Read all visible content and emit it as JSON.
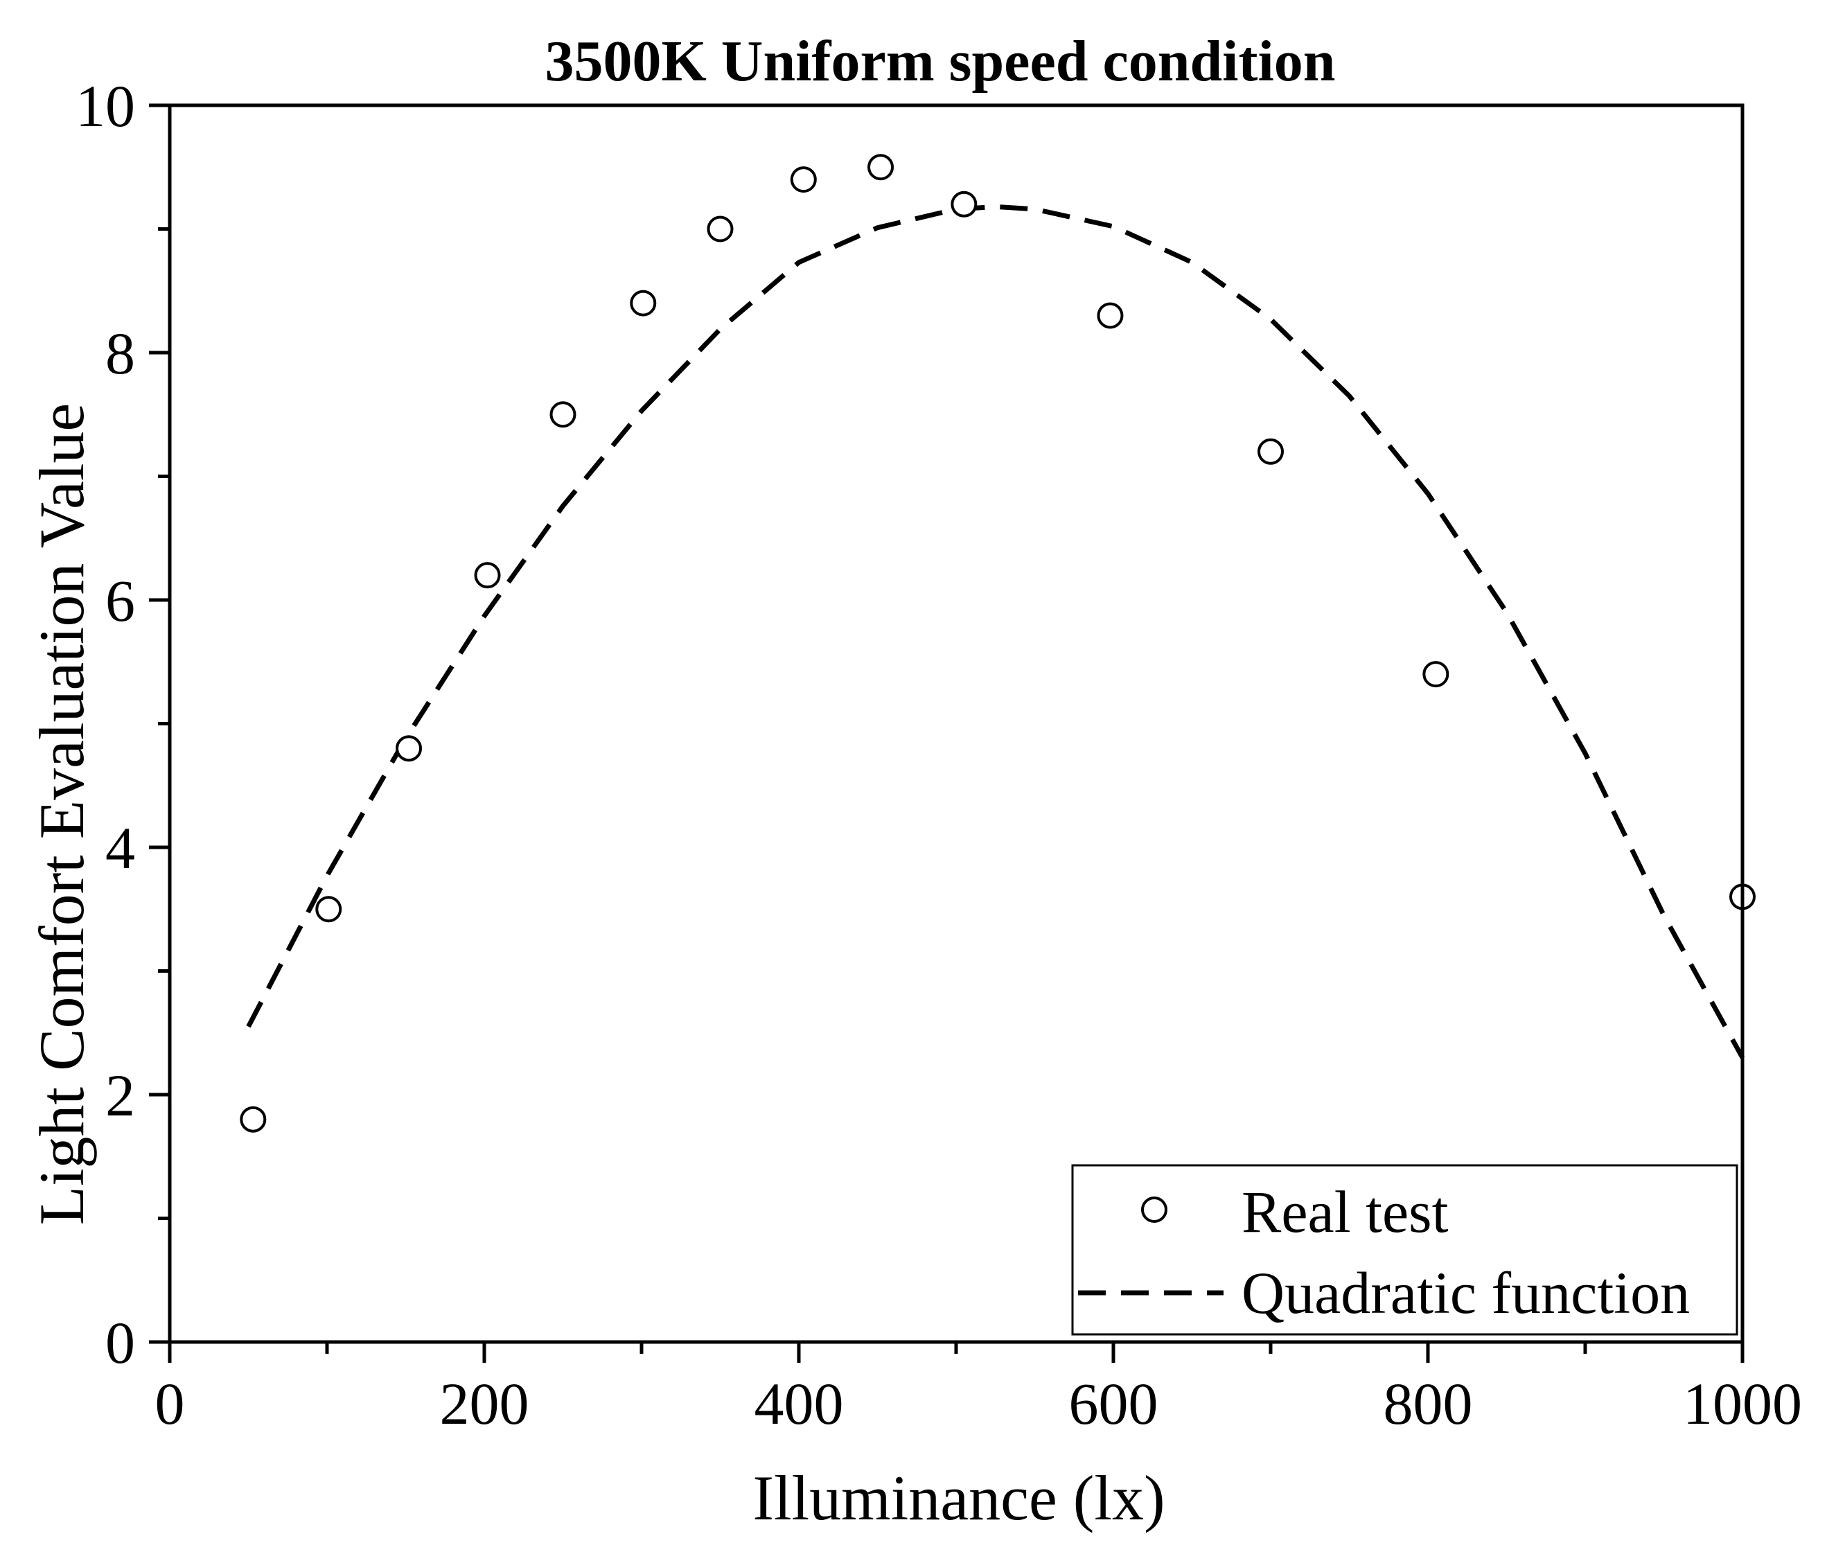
{
  "chart_data": {
    "type": "scatter",
    "title": "3500K Uniform speed condition",
    "xlabel": "Illuminance (lx)",
    "ylabel": "Light Comfort Evaluation Value",
    "xlim": [
      0,
      1000
    ],
    "ylim": [
      0,
      10
    ],
    "x_ticks": [
      0,
      200,
      400,
      600,
      800,
      1000
    ],
    "y_ticks": [
      0,
      2,
      4,
      6,
      8,
      10
    ],
    "x_minor_ticks": [
      100,
      300,
      500,
      700,
      900
    ],
    "y_minor_ticks": [
      1,
      3,
      5,
      7,
      9
    ],
    "grid": false,
    "legend_position": "bottom-right",
    "series": [
      {
        "name": "Real test",
        "kind": "scatter",
        "marker": "open-circle",
        "x": [
          53,
          101,
          152,
          202,
          250,
          301,
          350,
          403,
          452,
          505,
          598,
          700,
          805,
          1000
        ],
        "y": [
          1.8,
          3.5,
          4.8,
          6.2,
          7.5,
          8.4,
          9.0,
          9.4,
          9.5,
          9.2,
          8.3,
          7.2,
          5.4,
          3.6
        ]
      },
      {
        "name": "Quadratic function",
        "kind": "line",
        "style": "dashed",
        "x": [
          50,
          100,
          150,
          200,
          250,
          300,
          350,
          400,
          450,
          500,
          525,
          550,
          600,
          650,
          700,
          750,
          800,
          850,
          900,
          950,
          1000
        ],
        "y": [
          2.55,
          3.77,
          4.88,
          5.87,
          6.76,
          7.53,
          8.19,
          8.73,
          9.01,
          9.16,
          9.18,
          9.16,
          9.02,
          8.73,
          8.27,
          7.65,
          6.86,
          5.9,
          4.76,
          3.45,
          2.3
        ]
      }
    ]
  }
}
